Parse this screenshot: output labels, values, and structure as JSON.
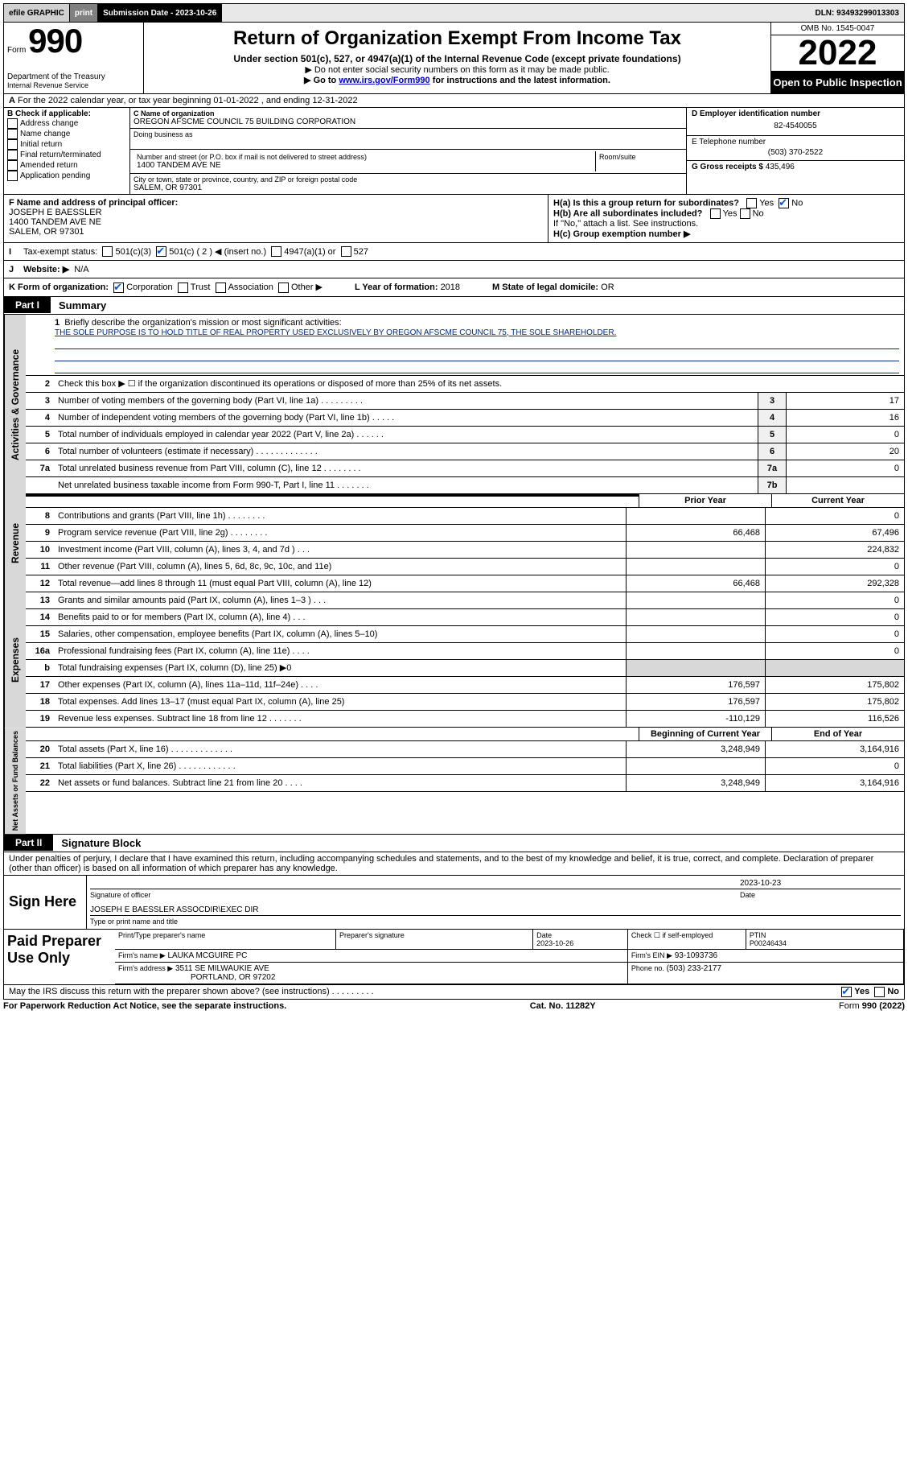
{
  "topbar": {
    "efile": "efile GRAPHIC",
    "print": "print",
    "subdate_label": "Submission Date - 2023-10-26",
    "dln": "DLN: 93493299013303"
  },
  "header": {
    "form_prefix": "Form",
    "form_num": "990",
    "dept": "Department of the Treasury",
    "irs": "Internal Revenue Service",
    "title": "Return of Organization Exempt From Income Tax",
    "sub1": "Under section 501(c), 527, or 4947(a)(1) of the Internal Revenue Code (except private foundations)",
    "sub2a": "▶ Do not enter social security numbers on this form as it may be made public.",
    "sub2b_pre": "▶ Go to ",
    "sub2b_link": "www.irs.gov/Form990",
    "sub2b_post": " for instructions and the latest information.",
    "omb": "OMB No. 1545-0047",
    "year": "2022",
    "open": "Open to Public Inspection"
  },
  "sectionA": "For the 2022 calendar year, or tax year beginning 01-01-2022   , and ending 12-31-2022",
  "boxB": {
    "hdr": "B Check if applicable:",
    "items": [
      "Address change",
      "Name change",
      "Initial return",
      "Final return/terminated",
      "Amended return",
      "Application pending"
    ]
  },
  "boxC": {
    "name_label": "C Name of organization",
    "name": "OREGON AFSCME COUNCIL 75 BUILDING CORPORATION",
    "dba_label": "Doing business as",
    "street_label": "Number and street (or P.O. box if mail is not delivered to street address)",
    "room_label": "Room/suite",
    "street": "1400 TANDEM AVE NE",
    "city_label": "City or town, state or province, country, and ZIP or foreign postal code",
    "city": "SALEM, OR  97301"
  },
  "boxD": {
    "label": "D Employer identification number",
    "val": "82-4540055"
  },
  "boxE": {
    "label": "E Telephone number",
    "val": "(503) 370-2522"
  },
  "boxG": {
    "label": "G Gross receipts $",
    "val": "435,496"
  },
  "boxF": {
    "label": "F  Name and address of principal officer:",
    "name": "JOSEPH E BAESSLER",
    "street": "1400 TANDEM AVE NE",
    "city": "SALEM, OR  97301"
  },
  "boxH": {
    "a_label": "H(a)  Is this a group return for subordinates?",
    "a_yes": "Yes",
    "a_no": "No",
    "b_label": "H(b)  Are all subordinates included?",
    "b_note": "If \"No,\" attach a list. See instructions.",
    "c_label": "H(c)  Group exemption number ▶"
  },
  "boxI": {
    "label": "Tax-exempt status:",
    "opts": [
      "501(c)(3)",
      "501(c) ( 2 ) ◀ (insert no.)",
      "4947(a)(1) or",
      "527"
    ]
  },
  "boxJ": {
    "label": "Website: ▶",
    "val": "N/A"
  },
  "boxK": {
    "label": "K Form of organization:",
    "opts": [
      "Corporation",
      "Trust",
      "Association",
      "Other ▶"
    ]
  },
  "boxL": {
    "label": "L Year of formation:",
    "val": "2018"
  },
  "boxM": {
    "label": "M State of legal domicile:",
    "val": "OR"
  },
  "part1": {
    "tab": "Part I",
    "title": "Summary"
  },
  "mission": {
    "label": "Briefly describe the organization's mission or most significant activities:",
    "text": "THE SOLE PURPOSE IS TO HOLD TITLE OF REAL PROPERTY USED EXCLUSIVELY BY OREGON AFSCME COUNCIL 75, THE SOLE SHAREHOLDER."
  },
  "side_labels": {
    "gov": "Activities & Governance",
    "rev": "Revenue",
    "exp": "Expenses",
    "net": "Net Assets or Fund Balances"
  },
  "lines_gov": [
    {
      "n": "2",
      "d": "Check this box ▶ ☐  if the organization discontinued its operations or disposed of more than 25% of its net assets.",
      "box": "",
      "v": ""
    },
    {
      "n": "3",
      "d": "Number of voting members of the governing body (Part VI, line 1a)   .    .    .    .    .    .    .    .    .",
      "box": "3",
      "v": "17"
    },
    {
      "n": "4",
      "d": "Number of independent voting members of the governing body (Part VI, line 1b)   .    .    .    .    .",
      "box": "4",
      "v": "16"
    },
    {
      "n": "5",
      "d": "Total number of individuals employed in calendar year 2022 (Part V, line 2a)   .    .    .    .    .    .",
      "box": "5",
      "v": "0"
    },
    {
      "n": "6",
      "d": "Total number of volunteers (estimate if necessary)   .    .    .    .    .    .    .    .    .    .    .    .    .",
      "box": "6",
      "v": "20"
    },
    {
      "n": "7a",
      "d": "Total unrelated business revenue from Part VIII, column (C), line 12   .    .    .    .    .    .    .    .",
      "box": "7a",
      "v": "0"
    },
    {
      "n": "",
      "d": "Net unrelated business taxable income from Form 990-T, Part I, line 11   .    .    .    .    .    .    .",
      "box": "7b",
      "v": ""
    }
  ],
  "col_hdr": {
    "prior": "Prior Year",
    "curr": "Current Year",
    "beg": "Beginning of Current Year",
    "end": "End of Year"
  },
  "lines_rev": [
    {
      "n": "8",
      "d": "Contributions and grants (Part VIII, line 1h)    .    .    .    .    .    .    .    .",
      "p": "",
      "c": "0"
    },
    {
      "n": "9",
      "d": "Program service revenue (Part VIII, line 2g)    .    .    .    .    .    .    .    .",
      "p": "66,468",
      "c": "67,496"
    },
    {
      "n": "10",
      "d": "Investment income (Part VIII, column (A), lines 3, 4, and 7d )    .    .    .",
      "p": "",
      "c": "224,832"
    },
    {
      "n": "11",
      "d": "Other revenue (Part VIII, column (A), lines 5, 6d, 8c, 9c, 10c, and 11e)",
      "p": "",
      "c": "0"
    },
    {
      "n": "12",
      "d": "Total revenue—add lines 8 through 11 (must equal Part VIII, column (A), line 12)",
      "p": "66,468",
      "c": "292,328"
    }
  ],
  "lines_exp": [
    {
      "n": "13",
      "d": "Grants and similar amounts paid (Part IX, column (A), lines 1–3 )    .    .    .",
      "p": "",
      "c": "0"
    },
    {
      "n": "14",
      "d": "Benefits paid to or for members (Part IX, column (A), line 4)    .    .    .",
      "p": "",
      "c": "0"
    },
    {
      "n": "15",
      "d": "Salaries, other compensation, employee benefits (Part IX, column (A), lines 5–10)",
      "p": "",
      "c": "0"
    },
    {
      "n": "16a",
      "d": "Professional fundraising fees (Part IX, column (A), line 11e)    .    .    .    .",
      "p": "",
      "c": "0"
    },
    {
      "n": "b",
      "d": "Total fundraising expenses (Part IX, column (D), line 25) ▶0",
      "p": "GREY",
      "c": "GREY"
    },
    {
      "n": "17",
      "d": "Other expenses (Part IX, column (A), lines 11a–11d, 11f–24e)    .    .    .    .",
      "p": "176,597",
      "c": "175,802"
    },
    {
      "n": "18",
      "d": "Total expenses. Add lines 13–17 (must equal Part IX, column (A), line 25)",
      "p": "176,597",
      "c": "175,802"
    },
    {
      "n": "19",
      "d": "Revenue less expenses. Subtract line 18 from line 12    .    .    .    .    .    .    .",
      "p": "-110,129",
      "c": "116,526"
    }
  ],
  "lines_net": [
    {
      "n": "20",
      "d": "Total assets (Part X, line 16)    .    .    .    .    .    .    .    .    .    .    .    .    .",
      "p": "3,248,949",
      "c": "3,164,916"
    },
    {
      "n": "21",
      "d": "Total liabilities (Part X, line 26)    .    .    .    .    .    .    .    .    .    .    .    .",
      "p": "",
      "c": "0"
    },
    {
      "n": "22",
      "d": "Net assets or fund balances. Subtract line 21 from line 20    .    .    .    .",
      "p": "3,248,949",
      "c": "3,164,916"
    }
  ],
  "part2": {
    "tab": "Part II",
    "title": "Signature Block"
  },
  "sig_decl": "Under penalties of perjury, I declare that I have examined this return, including accompanying schedules and statements, and to the best of my knowledge and belief, it is true, correct, and complete. Declaration of preparer (other than officer) is based on all information of which preparer has any knowledge.",
  "sign_here": "Sign Here",
  "sig": {
    "sig_label": "Signature of officer",
    "date_label": "Date",
    "date": "2023-10-23",
    "name": "JOSEPH E BAESSLER  ASSOCDIR\\EXEC DIR",
    "name_label": "Type or print name and title"
  },
  "paid": {
    "label": "Paid Preparer Use Only",
    "hdrs": [
      "Print/Type preparer's name",
      "Preparer's signature",
      "Date",
      "",
      "PTIN"
    ],
    "date": "2023-10-26",
    "check_label": "Check ☐ if self-employed",
    "ptin": "P00246434",
    "firm_name_label": "Firm's name     ▶",
    "firm_name": "LAUKA MCGUIRE PC",
    "firm_ein_label": "Firm's EIN ▶",
    "firm_ein": "93-1093736",
    "firm_addr_label": "Firm's address ▶",
    "firm_addr1": "3511 SE MILWAUKIE AVE",
    "firm_addr2": "PORTLAND, OR 97202",
    "phone_label": "Phone no.",
    "phone": "(503) 233-2177"
  },
  "bottom": {
    "q": "May the IRS discuss this return with the preparer shown above? (see instructions)    .    .    .    .    .    .    .    .    .",
    "yes": "Yes",
    "no": "No"
  },
  "footer": {
    "left": "For Paperwork Reduction Act Notice, see the separate instructions.",
    "mid": "Cat. No. 11282Y",
    "right": "Form 990 (2022)"
  }
}
